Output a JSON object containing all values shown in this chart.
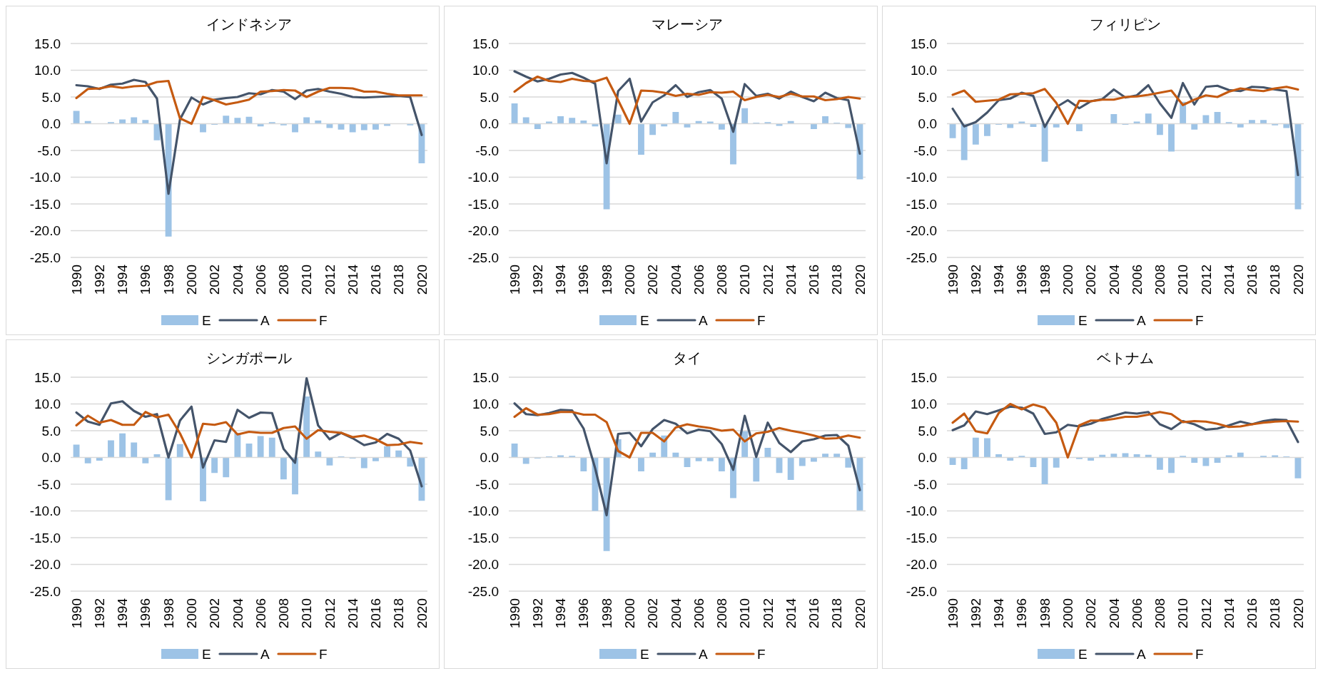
{
  "chart_data": [
    {
      "type": "bar",
      "title": "インドネシア",
      "categories": [
        "1990",
        null,
        "1992",
        null,
        "1994",
        null,
        "1996",
        null,
        "1998",
        null,
        "2000",
        null,
        "2002",
        null,
        "2004",
        null,
        "2006",
        null,
        "2008",
        null,
        "2010",
        null,
        "2012",
        null,
        "2014",
        null,
        "2016",
        null,
        "2018",
        null,
        "2020"
      ],
      "series": [
        {
          "name": "E",
          "type": "bar",
          "color": "#9dc3e6",
          "values": [
            2.4,
            0.5,
            null,
            0.3,
            0.8,
            1.2,
            0.7,
            -3.1,
            -21.1,
            null,
            null,
            -1.6,
            -0.2,
            1.5,
            1.1,
            1.3,
            -0.5,
            0.3,
            -0.3,
            -1.6,
            1.2,
            0.6,
            -0.8,
            -1.1,
            -1.6,
            -1.2,
            -1.1,
            -0.4,
            null,
            -0.3,
            -7.4
          ]
        },
        {
          "name": "A",
          "type": "line",
          "color": "#44546a",
          "values": [
            7.2,
            7.0,
            6.5,
            7.3,
            7.5,
            8.2,
            7.8,
            4.7,
            -13.1,
            0.8,
            4.9,
            3.6,
            4.5,
            4.8,
            5.0,
            5.7,
            5.5,
            6.3,
            6.0,
            4.6,
            6.2,
            6.5,
            6.0,
            5.6,
            5.0,
            4.9,
            5.0,
            5.1,
            5.2,
            5.0,
            -2.1
          ]
        },
        {
          "name": "F",
          "type": "line",
          "color": "#c55a11",
          "values": [
            4.8,
            6.5,
            6.6,
            7.0,
            6.7,
            7.0,
            7.1,
            7.8,
            8.0,
            1.0,
            0.0,
            5.0,
            4.4,
            3.6,
            4.0,
            4.5,
            6.0,
            6.1,
            6.3,
            6.2,
            5.0,
            6.0,
            6.7,
            6.7,
            6.6,
            6.0,
            6.0,
            5.6,
            5.3,
            5.3,
            5.3
          ]
        }
      ],
      "ylim": [
        -25,
        15
      ],
      "yticks": [
        {
          "value": -25,
          "label": "-25.0"
        },
        {
          "value": -20,
          "label": "-20.0"
        },
        {
          "value": -15,
          "label": "-15.0"
        },
        {
          "value": -10,
          "label": "-10.0"
        },
        {
          "value": -5,
          "label": "-5.0"
        },
        {
          "value": 0,
          "label": "0.0"
        },
        {
          "value": 5,
          "label": "5.0"
        },
        {
          "value": 10,
          "label": "10.0"
        },
        {
          "value": 15,
          "label": "15.0"
        }
      ],
      "grid": "y",
      "legend": "bottom"
    },
    {
      "type": "bar",
      "title": "マレーシア",
      "categories": [
        "1990",
        null,
        "1992",
        null,
        "1994",
        null,
        "1996",
        null,
        "1998",
        null,
        "2000",
        null,
        "2002",
        null,
        "2004",
        null,
        "2006",
        null,
        "2008",
        null,
        "2010",
        null,
        "2012",
        null,
        "2014",
        null,
        "2016",
        null,
        "2018",
        null,
        "2020"
      ],
      "series": [
        {
          "name": "E",
          "type": "bar",
          "color": "#9dc3e6",
          "values": [
            3.8,
            1.2,
            -1.0,
            0.4,
            1.4,
            1.1,
            0.6,
            -0.5,
            -16.0,
            1.7,
            null,
            -5.8,
            -2.1,
            -0.5,
            2.2,
            -0.7,
            0.5,
            0.4,
            -1.1,
            -7.6,
            2.9,
            0.2,
            0.3,
            -0.4,
            0.5,
            null,
            -1.0,
            1.4,
            0.2,
            -0.8,
            -10.4
          ]
        },
        {
          "name": "A",
          "type": "line",
          "color": "#44546a",
          "values": [
            9.8,
            8.8,
            7.9,
            8.4,
            9.2,
            9.5,
            8.6,
            7.5,
            -7.4,
            6.1,
            8.4,
            0.4,
            4.0,
            5.3,
            7.2,
            5.0,
            5.9,
            6.3,
            4.7,
            -1.5,
            7.4,
            5.2,
            5.6,
            4.7,
            6.0,
            5.0,
            4.2,
            5.8,
            4.8,
            4.4,
            -5.6
          ]
        },
        {
          "name": "F",
          "type": "line",
          "color": "#c55a11",
          "values": [
            6.0,
            7.6,
            8.8,
            8.0,
            7.8,
            8.4,
            8.0,
            7.9,
            8.6,
            4.4,
            0.0,
            6.2,
            6.1,
            5.8,
            5.2,
            5.6,
            5.4,
            5.9,
            5.8,
            6.0,
            4.4,
            5.0,
            5.4,
            5.0,
            5.6,
            5.1,
            5.1,
            4.4,
            4.6,
            5.0,
            4.7
          ]
        }
      ],
      "ylim": [
        -25,
        15
      ],
      "yticks": [
        {
          "value": -25,
          "label": "-25.0"
        },
        {
          "value": -20,
          "label": "-20.0"
        },
        {
          "value": -15,
          "label": "-15.0"
        },
        {
          "value": -10,
          "label": "-10.0"
        },
        {
          "value": -5,
          "label": "-5.0"
        },
        {
          "value": 0,
          "label": "0.0"
        },
        {
          "value": 5,
          "label": "5.0"
        },
        {
          "value": 10,
          "label": "10.0"
        },
        {
          "value": 15,
          "label": "15.0"
        }
      ],
      "grid": "y",
      "legend": "bottom"
    },
    {
      "type": "bar",
      "title": "フィリピン",
      "categories": [
        "1990",
        null,
        "1992",
        null,
        "1994",
        null,
        "1996",
        null,
        "1998",
        null,
        "2000",
        null,
        "2002",
        null,
        "2004",
        null,
        "2006",
        null,
        "2008",
        null,
        "2010",
        null,
        "2012",
        null,
        "2014",
        null,
        "2016",
        null,
        "2018",
        null,
        "2020"
      ],
      "series": [
        {
          "name": "E",
          "type": "bar",
          "color": "#9dc3e6",
          "values": [
            -2.7,
            -6.8,
            -3.9,
            -2.3,
            -0.2,
            -0.8,
            0.4,
            -0.6,
            -7.1,
            -0.7,
            null,
            -1.4,
            null,
            null,
            1.8,
            -0.2,
            0.4,
            1.9,
            -2.1,
            -5.2,
            4.1,
            -1.1,
            1.6,
            2.2,
            0.3,
            -0.7,
            0.7,
            0.7,
            -0.3,
            -0.8,
            -16.0
          ]
        },
        {
          "name": "A",
          "type": "line",
          "color": "#44546a",
          "values": [
            2.8,
            -0.5,
            0.3,
            2.1,
            4.4,
            4.7,
            5.8,
            5.2,
            -0.6,
            3.1,
            4.4,
            2.9,
            4.2,
            4.6,
            6.4,
            4.9,
            5.3,
            7.2,
            3.8,
            1.1,
            7.6,
            3.6,
            6.9,
            7.1,
            6.3,
            6.1,
            6.9,
            6.8,
            6.4,
            6.1,
            -9.6
          ]
        },
        {
          "name": "F",
          "type": "line",
          "color": "#c55a11",
          "values": [
            5.4,
            6.2,
            4.1,
            4.3,
            4.5,
            5.5,
            5.6,
            5.7,
            6.5,
            3.9,
            0.0,
            4.3,
            4.2,
            4.5,
            4.5,
            5.0,
            5.1,
            5.4,
            5.8,
            6.2,
            3.5,
            4.5,
            5.3,
            5.0,
            6.0,
            6.6,
            6.3,
            6.1,
            6.6,
            6.9,
            6.4
          ]
        }
      ],
      "ylim": [
        -25,
        15
      ],
      "yticks": [
        {
          "value": -25,
          "label": "-25.0"
        },
        {
          "value": -20,
          "label": "-20.0"
        },
        {
          "value": -15,
          "label": "-15.0"
        },
        {
          "value": -10,
          "label": "-10.0"
        },
        {
          "value": -5,
          "label": "-5.0"
        },
        {
          "value": 0,
          "label": "0.0"
        },
        {
          "value": 5,
          "label": "5.0"
        },
        {
          "value": 10,
          "label": "10.0"
        },
        {
          "value": 15,
          "label": "15.0"
        }
      ],
      "grid": "y",
      "legend": "bottom"
    },
    {
      "type": "bar",
      "title": "シンガポール",
      "categories": [
        "1990",
        null,
        "1992",
        null,
        "1994",
        null,
        "1996",
        null,
        "1998",
        null,
        "2000",
        null,
        "2002",
        null,
        "2004",
        null,
        "2006",
        null,
        "2008",
        null,
        "2010",
        null,
        "2012",
        null,
        "2014",
        null,
        "2016",
        null,
        "2018",
        null,
        "2020"
      ],
      "series": [
        {
          "name": "E",
          "type": "bar",
          "color": "#9dc3e6",
          "values": [
            2.4,
            -1.1,
            -0.6,
            3.2,
            4.5,
            2.8,
            -1.1,
            0.6,
            -8.0,
            2.5,
            null,
            -8.2,
            -2.9,
            -3.7,
            4.6,
            2.6,
            4.0,
            3.7,
            -4.1,
            -6.9,
            11.4,
            1.1,
            -1.5,
            0.2,
            -0.2,
            -2.0,
            -0.7,
            2.1,
            1.3,
            -1.7,
            -8.1
          ]
        },
        {
          "name": "A",
          "type": "line",
          "color": "#44546a",
          "values": [
            8.4,
            6.7,
            6.1,
            10.1,
            10.5,
            8.7,
            7.6,
            8.1,
            0.0,
            6.9,
            9.5,
            -1.9,
            3.2,
            2.9,
            8.9,
            7.4,
            8.4,
            8.3,
            1.6,
            -1.0,
            14.8,
            6.0,
            3.4,
            4.6,
            3.6,
            2.3,
            2.8,
            4.4,
            3.5,
            1.3,
            -5.4
          ]
        },
        {
          "name": "F",
          "type": "line",
          "color": "#c55a11",
          "values": [
            6.0,
            7.8,
            6.5,
            7.0,
            6.1,
            6.1,
            8.5,
            7.5,
            8.0,
            4.5,
            0.0,
            6.3,
            6.1,
            6.6,
            4.3,
            4.8,
            4.6,
            4.6,
            5.5,
            5.8,
            3.5,
            5.1,
            4.8,
            4.6,
            3.8,
            4.1,
            3.4,
            2.3,
            2.4,
            2.9,
            2.6
          ]
        }
      ],
      "ylim": [
        -25,
        15
      ],
      "yticks": [
        {
          "value": -25,
          "label": "-25.0"
        },
        {
          "value": -20,
          "label": "-20.0"
        },
        {
          "value": -15,
          "label": "-15.0"
        },
        {
          "value": -10,
          "label": "-10.0"
        },
        {
          "value": -5,
          "label": "-5.0"
        },
        {
          "value": 0,
          "label": "0.0"
        },
        {
          "value": 5,
          "label": "5.0"
        },
        {
          "value": 10,
          "label": "10.0"
        },
        {
          "value": 15,
          "label": "15.0"
        }
      ],
      "grid": "y",
      "legend": "bottom"
    },
    {
      "type": "bar",
      "title": "タイ",
      "categories": [
        "1990",
        null,
        "1992",
        null,
        "1994",
        null,
        "1996",
        null,
        "1998",
        null,
        "2000",
        null,
        "2002",
        null,
        "2004",
        null,
        "2006",
        null,
        "2008",
        null,
        "2010",
        null,
        "2012",
        null,
        "2014",
        null,
        "2016",
        null,
        "2018",
        null,
        "2020"
      ],
      "series": [
        {
          "name": "E",
          "type": "bar",
          "color": "#9dc3e6",
          "values": [
            2.6,
            -1.2,
            -0.2,
            0.2,
            0.4,
            0.3,
            -2.6,
            -10.0,
            -17.5,
            3.4,
            null,
            -2.6,
            0.9,
            4.1,
            0.9,
            -1.8,
            -0.7,
            -0.7,
            -2.6,
            -7.6,
            4.9,
            -4.5,
            1.8,
            -2.9,
            -4.2,
            -1.6,
            -0.8,
            0.7,
            0.7,
            -1.9,
            -9.9
          ]
        },
        {
          "name": "A",
          "type": "line",
          "color": "#44546a",
          "values": [
            10.1,
            8.1,
            7.9,
            8.3,
            8.9,
            8.8,
            5.4,
            -2.0,
            -10.8,
            4.4,
            4.6,
            2.1,
            5.3,
            7.0,
            6.3,
            4.5,
            5.2,
            4.9,
            2.5,
            -2.3,
            7.8,
            0.1,
            6.5,
            2.7,
            1.0,
            3.0,
            3.4,
            4.1,
            4.2,
            2.2,
            -6.1
          ]
        },
        {
          "name": "F",
          "type": "line",
          "color": "#c55a11",
          "values": [
            7.6,
            9.2,
            8.0,
            8.1,
            8.5,
            8.5,
            8.0,
            8.0,
            6.6,
            1.2,
            0.0,
            4.6,
            4.6,
            3.0,
            5.6,
            6.2,
            5.8,
            5.5,
            5.0,
            5.2,
            3.0,
            4.5,
            4.8,
            5.5,
            5.0,
            4.6,
            4.1,
            3.5,
            3.6,
            4.1,
            3.7
          ]
        }
      ],
      "ylim": [
        -25,
        15
      ],
      "yticks": [
        {
          "value": -25,
          "label": "-25.0"
        },
        {
          "value": -20,
          "label": "-20.0"
        },
        {
          "value": -15,
          "label": "-15.0"
        },
        {
          "value": -10,
          "label": "-10.0"
        },
        {
          "value": -5,
          "label": "-5.0"
        },
        {
          "value": 0,
          "label": "0.0"
        },
        {
          "value": 5,
          "label": "5.0"
        },
        {
          "value": 10,
          "label": "10.0"
        },
        {
          "value": 15,
          "label": "15.0"
        }
      ],
      "grid": "y",
      "legend": "bottom"
    },
    {
      "type": "bar",
      "title": "ベトナム",
      "categories": [
        "1990",
        null,
        "1992",
        null,
        "1994",
        null,
        "1996",
        null,
        "1998",
        null,
        "2000",
        null,
        "2002",
        null,
        "2004",
        null,
        "2006",
        null,
        "2008",
        null,
        "2010",
        null,
        "2012",
        null,
        "2014",
        null,
        "2016",
        null,
        "2018",
        null,
        "2020"
      ],
      "series": [
        {
          "name": "E",
          "type": "bar",
          "color": "#9dc3e6",
          "values": [
            -1.4,
            -2.2,
            3.7,
            3.6,
            0.6,
            -0.6,
            0.3,
            -1.8,
            -5.0,
            -1.9,
            null,
            -0.3,
            -0.6,
            0.5,
            0.7,
            0.8,
            0.6,
            0.5,
            -2.3,
            -2.9,
            0.3,
            -1.0,
            -1.6,
            -1.0,
            0.4,
            0.9,
            0.0,
            0.3,
            0.4,
            0.2,
            -3.9
          ]
        },
        {
          "name": "A",
          "type": "line",
          "color": "#44546a",
          "values": [
            5.1,
            6.0,
            8.6,
            8.1,
            8.8,
            9.5,
            9.3,
            8.2,
            4.4,
            4.7,
            6.1,
            5.8,
            6.3,
            7.2,
            7.8,
            8.4,
            8.2,
            8.5,
            6.2,
            5.3,
            6.8,
            6.2,
            5.2,
            5.4,
            6.0,
            6.7,
            6.2,
            6.8,
            7.1,
            7.0,
            2.9
          ]
        },
        {
          "name": "F",
          "type": "line",
          "color": "#c55a11",
          "values": [
            6.5,
            8.2,
            4.9,
            4.5,
            8.3,
            10.0,
            9.0,
            9.9,
            9.3,
            6.5,
            0.0,
            6.0,
            6.9,
            6.9,
            7.2,
            7.6,
            7.6,
            8.0,
            8.5,
            8.1,
            6.6,
            6.8,
            6.7,
            6.3,
            5.7,
            5.8,
            6.2,
            6.5,
            6.7,
            6.8,
            6.7
          ]
        }
      ],
      "ylim": [
        -25,
        15
      ],
      "yticks": [
        {
          "value": -25,
          "label": "-25.0"
        },
        {
          "value": -20,
          "label": "-20.0"
        },
        {
          "value": -15,
          "label": "-15.0"
        },
        {
          "value": -10,
          "label": "-10.0"
        },
        {
          "value": -5,
          "label": "-5.0"
        },
        {
          "value": 0,
          "label": "0.0"
        },
        {
          "value": 5,
          "label": "5.0"
        },
        {
          "value": 10,
          "label": "10.0"
        },
        {
          "value": 15,
          "label": "15.0"
        }
      ],
      "grid": "y",
      "legend": "bottom"
    }
  ]
}
